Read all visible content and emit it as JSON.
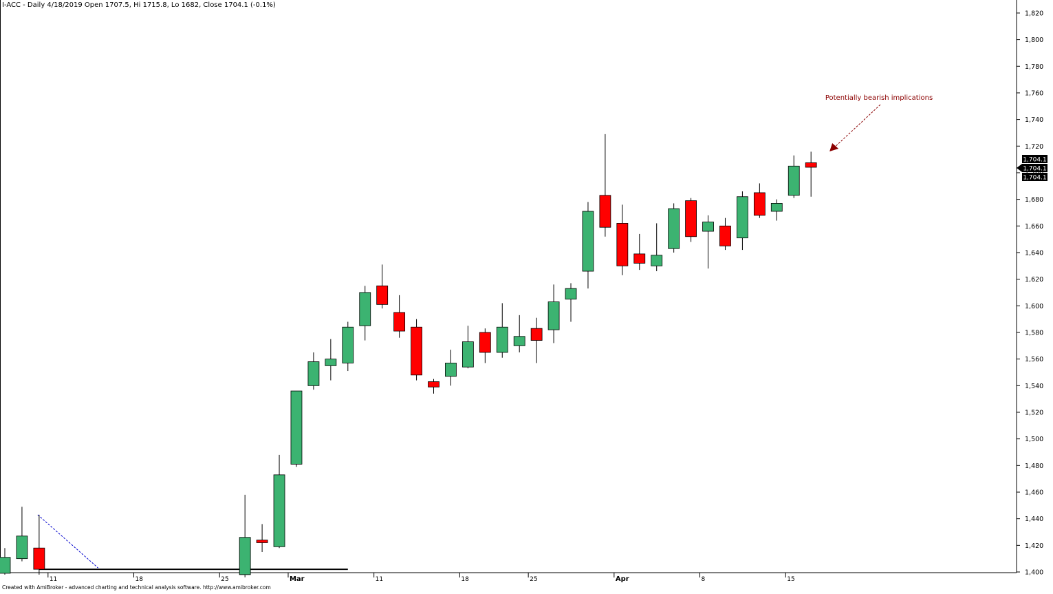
{
  "header": {
    "text": "I-ACC - Daily 4/18/2019 Open 1707.5, Hi 1715.8, Lo 1682, Close 1704.1 (-0.1%)"
  },
  "footer": {
    "text": "Created with AmiBroker - advanced charting and technical analysis software. http://www.amibroker.com"
  },
  "colors": {
    "up": "#3CB371",
    "down": "#FF0000",
    "wick": "#000000",
    "annotation": "#8B0000",
    "trendline": "#0000CD",
    "axis": "#000000",
    "background": "#FFFFFF"
  },
  "chart_data": {
    "type": "candlestick",
    "title": "I-ACC - Daily",
    "ylim": [
      1400,
      1830
    ],
    "y_ticks": [
      {
        "value": 1400,
        "label": "1,400"
      },
      {
        "value": 1420,
        "label": "1,420"
      },
      {
        "value": 1440,
        "label": "1,440"
      },
      {
        "value": 1460,
        "label": "1,460"
      },
      {
        "value": 1480,
        "label": "1,480"
      },
      {
        "value": 1500,
        "label": "1,500"
      },
      {
        "value": 1520,
        "label": "1,520"
      },
      {
        "value": 1540,
        "label": "1,540"
      },
      {
        "value": 1560,
        "label": "1,560"
      },
      {
        "value": 1580,
        "label": "1,580"
      },
      {
        "value": 1600,
        "label": "1,600"
      },
      {
        "value": 1620,
        "label": "1,620"
      },
      {
        "value": 1640,
        "label": "1,640"
      },
      {
        "value": 1660,
        "label": "1,660"
      },
      {
        "value": 1680,
        "label": "1,680"
      },
      {
        "value": 1700,
        "label": "1,700"
      },
      {
        "value": 1720,
        "label": "1,720"
      },
      {
        "value": 1740,
        "label": "1,740"
      },
      {
        "value": 1760,
        "label": "1,760"
      },
      {
        "value": 1780,
        "label": "1,780"
      },
      {
        "value": 1800,
        "label": "1,800"
      },
      {
        "value": 1820,
        "label": "1,820"
      }
    ],
    "x_ticks": [
      {
        "index": 3,
        "label": "11",
        "bold": false
      },
      {
        "index": 8,
        "label": "18",
        "bold": false
      },
      {
        "index": 13,
        "label": "25",
        "bold": false
      },
      {
        "index": 17,
        "label": "Mar",
        "bold": true
      },
      {
        "index": 22,
        "label": "11",
        "bold": false
      },
      {
        "index": 27,
        "label": "18",
        "bold": false
      },
      {
        "index": 31,
        "label": "25",
        "bold": false
      },
      {
        "index": 36,
        "label": "Apr",
        "bold": true
      },
      {
        "index": 41,
        "label": "8",
        "bold": false
      },
      {
        "index": 46,
        "label": "15",
        "bold": false
      }
    ],
    "candles": [
      {
        "o": 1399,
        "h": 1418,
        "l": 1398,
        "c": 1411
      },
      {
        "o": 1410,
        "h": 1449,
        "l": 1408,
        "c": 1427
      },
      {
        "o": 1418,
        "h": 1443,
        "l": 1398,
        "c": 1402
      },
      null,
      null,
      null,
      null,
      null,
      null,
      null,
      null,
      null,
      null,
      null,
      {
        "o": 1398,
        "h": 1458,
        "l": 1396,
        "c": 1426
      },
      {
        "o": 1424,
        "h": 1436,
        "l": 1415,
        "c": 1422
      },
      {
        "o": 1419,
        "h": 1488,
        "l": 1418,
        "c": 1473
      },
      {
        "o": 1481,
        "h": 1536,
        "l": 1479,
        "c": 1536
      },
      {
        "o": 1540,
        "h": 1565,
        "l": 1537,
        "c": 1558
      },
      {
        "o": 1555,
        "h": 1575,
        "l": 1544,
        "c": 1560
      },
      {
        "o": 1557,
        "h": 1588,
        "l": 1551,
        "c": 1584
      },
      {
        "o": 1585,
        "h": 1615,
        "l": 1574,
        "c": 1610
      },
      {
        "o": 1615,
        "h": 1631,
        "l": 1598,
        "c": 1601
      },
      {
        "o": 1595,
        "h": 1608,
        "l": 1576,
        "c": 1581
      },
      {
        "o": 1584,
        "h": 1590,
        "l": 1544,
        "c": 1548
      },
      {
        "o": 1543,
        "h": 1545,
        "l": 1534,
        "c": 1539
      },
      {
        "o": 1547,
        "h": 1567,
        "l": 1540,
        "c": 1557
      },
      {
        "o": 1554,
        "h": 1585,
        "l": 1553,
        "c": 1573
      },
      {
        "o": 1580,
        "h": 1583,
        "l": 1557,
        "c": 1565
      },
      {
        "o": 1565,
        "h": 1602,
        "l": 1561,
        "c": 1584
      },
      {
        "o": 1570,
        "h": 1593,
        "l": 1565,
        "c": 1577
      },
      {
        "o": 1583,
        "h": 1591,
        "l": 1557,
        "c": 1574
      },
      {
        "o": 1582,
        "h": 1616,
        "l": 1572,
        "c": 1603
      },
      {
        "o": 1605,
        "h": 1617,
        "l": 1588,
        "c": 1613
      },
      {
        "o": 1626,
        "h": 1678,
        "l": 1613,
        "c": 1671
      },
      {
        "o": 1683,
        "h": 1729,
        "l": 1652,
        "c": 1659
      },
      {
        "o": 1662,
        "h": 1676,
        "l": 1623,
        "c": 1630
      },
      {
        "o": 1639,
        "h": 1654,
        "l": 1627,
        "c": 1632
      },
      {
        "o": 1630,
        "h": 1662,
        "l": 1626,
        "c": 1638
      },
      {
        "o": 1643,
        "h": 1677,
        "l": 1640,
        "c": 1673
      },
      {
        "o": 1679,
        "h": 1681,
        "l": 1648,
        "c": 1652
      },
      {
        "o": 1656,
        "h": 1668,
        "l": 1628,
        "c": 1663
      },
      {
        "o": 1660,
        "h": 1666,
        "l": 1642,
        "c": 1645
      },
      {
        "o": 1651,
        "h": 1686,
        "l": 1642,
        "c": 1682
      },
      {
        "o": 1685,
        "h": 1692,
        "l": 1666,
        "c": 1668
      },
      {
        "o": 1671,
        "h": 1680,
        "l": 1664,
        "c": 1677
      },
      {
        "o": 1683,
        "h": 1713,
        "l": 1681,
        "c": 1705
      },
      {
        "o": 1707.5,
        "h": 1715.8,
        "l": 1682,
        "c": 1704.1
      }
    ],
    "support_line": {
      "start_index": 2,
      "end_index": 20,
      "value": 1402
    },
    "trendline": {
      "start_index": 2,
      "start_value": 1443,
      "end_index": 5,
      "end_value": 1403
    },
    "annotation": {
      "text": "Potentially bearish implications",
      "arrow_target_index": 48,
      "arrow_target_value": 1716
    },
    "last_price_labels": [
      "1,704.1",
      "1,704.1",
      "1,704.1"
    ]
  }
}
